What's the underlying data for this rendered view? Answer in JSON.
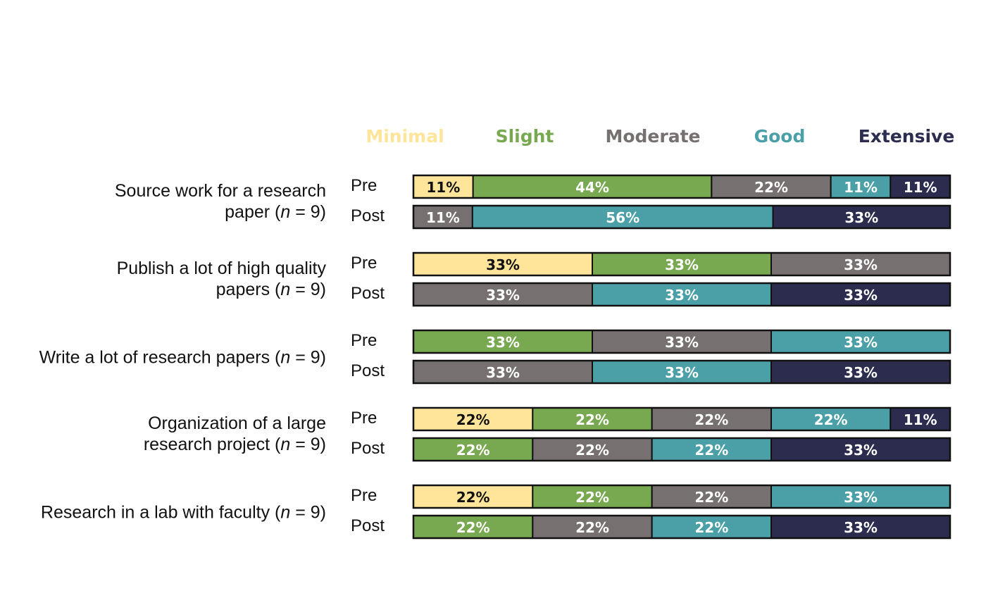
{
  "chart_data": {
    "type": "bar",
    "orientation": "horizontal",
    "stacked": true,
    "normalized_percent": true,
    "legend_position": "top",
    "grid": false,
    "xlim": [
      0,
      100
    ],
    "title": "",
    "xlabel": "",
    "ylabel": "",
    "categories": [
      "Minimal",
      "Slight",
      "Moderate",
      "Good",
      "Extensive"
    ],
    "colors": {
      "Minimal": "#fee59a",
      "Slight": "#78a951",
      "Moderate": "#767170",
      "Good": "#4b9fa6",
      "Extensive": "#2b2c4e"
    },
    "label_colors": {
      "Minimal": "#111111",
      "Slight": "#ffffff",
      "Moderate": "#ffffff",
      "Good": "#ffffff",
      "Extensive": "#ffffff"
    },
    "items": [
      {
        "label_lines": [
          "Source work for a research",
          "paper (",
          "n",
          " = 9)"
        ],
        "line1": "Source work for a research",
        "line2_pre": "paper (",
        "n_sym": "n",
        "n_val": " = 9)",
        "rows": [
          {
            "period": "Pre",
            "segments": [
              {
                "category": "Minimal",
                "value": 11,
                "label": "11%"
              },
              {
                "category": "Slight",
                "value": 44,
                "label": "44%"
              },
              {
                "category": "Moderate",
                "value": 22,
                "label": "22%"
              },
              {
                "category": "Good",
                "value": 11,
                "label": "11%"
              },
              {
                "category": "Extensive",
                "value": 11,
                "label": "11%"
              }
            ]
          },
          {
            "period": "Post",
            "segments": [
              {
                "category": "Moderate",
                "value": 11,
                "label": "11%"
              },
              {
                "category": "Good",
                "value": 56,
                "label": "56%"
              },
              {
                "category": "Extensive",
                "value": 33,
                "label": "33%"
              }
            ]
          }
        ]
      },
      {
        "line1": "Publish a lot of high quality",
        "line2_pre": "papers (",
        "n_sym": "n",
        "n_val": " = 9)",
        "rows": [
          {
            "period": "Pre",
            "segments": [
              {
                "category": "Minimal",
                "value": 33,
                "label": "33%"
              },
              {
                "category": "Slight",
                "value": 33,
                "label": "33%"
              },
              {
                "category": "Moderate",
                "value": 33,
                "label": "33%"
              }
            ]
          },
          {
            "period": "Post",
            "segments": [
              {
                "category": "Moderate",
                "value": 33,
                "label": "33%"
              },
              {
                "category": "Good",
                "value": 33,
                "label": "33%"
              },
              {
                "category": "Extensive",
                "value": 33,
                "label": "33%"
              }
            ]
          }
        ]
      },
      {
        "line1": "",
        "line2_pre": "Write a lot of research papers (",
        "n_sym": "n",
        "n_val": " = 9)",
        "rows": [
          {
            "period": "Pre",
            "segments": [
              {
                "category": "Slight",
                "value": 33,
                "label": "33%"
              },
              {
                "category": "Moderate",
                "value": 33,
                "label": "33%"
              },
              {
                "category": "Good",
                "value": 33,
                "label": "33%"
              }
            ]
          },
          {
            "period": "Post",
            "segments": [
              {
                "category": "Moderate",
                "value": 33,
                "label": "33%"
              },
              {
                "category": "Good",
                "value": 33,
                "label": "33%"
              },
              {
                "category": "Extensive",
                "value": 33,
                "label": "33%"
              }
            ]
          }
        ]
      },
      {
        "line1": "Organization of a large",
        "line2_pre": "research project (",
        "n_sym": "n",
        "n_val": " = 9)",
        "rows": [
          {
            "period": "Pre",
            "segments": [
              {
                "category": "Minimal",
                "value": 22,
                "label": "22%"
              },
              {
                "category": "Slight",
                "value": 22,
                "label": "22%"
              },
              {
                "category": "Moderate",
                "value": 22,
                "label": "22%"
              },
              {
                "category": "Good",
                "value": 22,
                "label": "22%"
              },
              {
                "category": "Extensive",
                "value": 11,
                "label": "11%"
              }
            ]
          },
          {
            "period": "Post",
            "segments": [
              {
                "category": "Slight",
                "value": 22,
                "label": "22%"
              },
              {
                "category": "Moderate",
                "value": 22,
                "label": "22%"
              },
              {
                "category": "Good",
                "value": 22,
                "label": "22%"
              },
              {
                "category": "Extensive",
                "value": 33,
                "label": "33%"
              }
            ]
          }
        ]
      },
      {
        "line1": "",
        "line2_pre": "Research in a lab with faculty (",
        "n_sym": "n",
        "n_val": " = 9)",
        "rows": [
          {
            "period": "Pre",
            "segments": [
              {
                "category": "Minimal",
                "value": 22,
                "label": "22%"
              },
              {
                "category": "Slight",
                "value": 22,
                "label": "22%"
              },
              {
                "category": "Moderate",
                "value": 22,
                "label": "22%"
              },
              {
                "category": "Good",
                "value": 33,
                "label": "33%"
              }
            ]
          },
          {
            "period": "Post",
            "segments": [
              {
                "category": "Slight",
                "value": 22,
                "label": "22%"
              },
              {
                "category": "Moderate",
                "value": 22,
                "label": "22%"
              },
              {
                "category": "Good",
                "value": 22,
                "label": "22%"
              },
              {
                "category": "Extensive",
                "value": 33,
                "label": "33%"
              }
            ]
          }
        ]
      }
    ]
  }
}
